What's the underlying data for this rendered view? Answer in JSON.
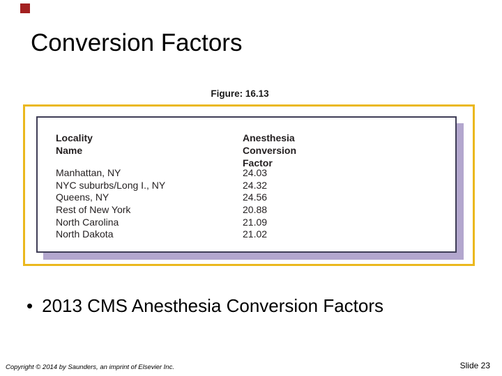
{
  "slide": {
    "title": "Conversion Factors",
    "figure_label": "Figure: 16.13",
    "figure": {
      "table": {
        "col1_header": "Locality\nName",
        "col2_header": "Anesthesia\nConversion\nFactor",
        "rows": [
          {
            "locality": "Manhattan, NY",
            "factor": "24.03"
          },
          {
            "locality": "NYC suburbs/Long I., NY",
            "factor": "24.32"
          },
          {
            "locality": "Queens, NY",
            "factor": "24.56"
          },
          {
            "locality": "Rest of New York",
            "factor": "20.88"
          },
          {
            "locality": "North Carolina",
            "factor": "21.09"
          },
          {
            "locality": "North Dakota",
            "factor": "21.02"
          }
        ]
      }
    },
    "bullet_glyph": "•",
    "bullet": "2013 CMS Anesthesia Conversion Factors",
    "footer": {
      "copyright": "Copyright © 2014 by Saunders, an imprint of Elsevier Inc.",
      "slide_number": "Slide 23"
    },
    "colors": {
      "accent_red": "#A32020",
      "frame_yellow": "#EBB81E",
      "shadow_lavender": "#B3A7CE",
      "figure_border": "#3F3D56"
    }
  }
}
